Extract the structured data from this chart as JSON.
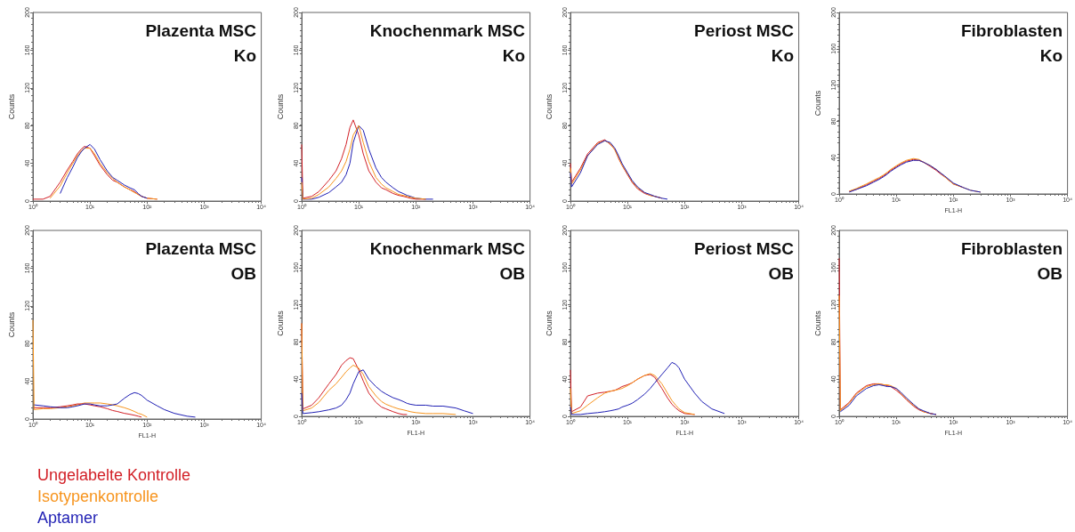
{
  "chart_data": [
    {
      "type": "line",
      "title": "Plazenta MSC\nKo",
      "ylabel": "Counts",
      "log": "x",
      "xlim": [
        1,
        10000
      ],
      "ylim": [
        0,
        200
      ],
      "xticks": [
        {
          "value": 1,
          "label": "10⁰"
        },
        {
          "value": 10,
          "label": "10¹"
        },
        {
          "value": 100,
          "label": "10²"
        },
        {
          "value": 1000,
          "label": "10³"
        },
        {
          "value": 10000,
          "label": "10⁴"
        }
      ],
      "yticks": [
        0,
        40,
        80,
        120,
        160,
        200
      ],
      "x": [
        1,
        1.05,
        1.5,
        2,
        3,
        4,
        5,
        6,
        7,
        8,
        10,
        12,
        15,
        20,
        25,
        30,
        40,
        50,
        60,
        70,
        80,
        100,
        150
      ],
      "series": [
        {
          "color": "#d21f26",
          "values": [
            2,
            2,
            2,
            5,
            20,
            33,
            42,
            50,
            55,
            58,
            56,
            48,
            38,
            28,
            22,
            20,
            15,
            12,
            10,
            7,
            5,
            3,
            2
          ]
        },
        {
          "color": "#f7941d",
          "values": [
            null,
            null,
            null,
            3,
            16,
            30,
            40,
            48,
            53,
            56,
            56,
            50,
            40,
            30,
            24,
            20,
            15,
            12,
            9,
            7,
            5,
            3,
            2
          ]
        },
        {
          "color": "#1f1fb4",
          "values": [
            null,
            null,
            null,
            null,
            8,
            25,
            36,
            46,
            52,
            56,
            60,
            55,
            44,
            32,
            25,
            22,
            17,
            14,
            12,
            8,
            5,
            3,
            null
          ]
        }
      ]
    },
    {
      "type": "line",
      "title": "Knochenmark MSC\nKo",
      "ylabel": "Counts",
      "log": "x",
      "xlim": [
        1,
        10000
      ],
      "ylim": [
        0,
        200
      ],
      "xticks": [
        {
          "value": 1,
          "label": "10⁰"
        },
        {
          "value": 10,
          "label": "10¹"
        },
        {
          "value": 100,
          "label": "10²"
        },
        {
          "value": 1000,
          "label": "10³"
        },
        {
          "value": 10000,
          "label": "10⁴"
        }
      ],
      "yticks": [
        0,
        40,
        80,
        120,
        160,
        200
      ],
      "x": [
        1,
        1.05,
        1.5,
        2,
        3,
        4,
        5,
        6,
        7,
        8,
        10,
        12,
        15,
        20,
        25,
        30,
        40,
        50,
        60,
        70,
        80,
        100,
        150,
        200
      ],
      "series": [
        {
          "color": "#d21f26",
          "values": [
            60,
            3,
            5,
            10,
            22,
            32,
            45,
            60,
            78,
            86,
            70,
            50,
            32,
            20,
            14,
            12,
            8,
            6,
            5,
            4,
            3,
            2,
            2,
            null
          ]
        },
        {
          "color": "#f7941d",
          "values": [
            20,
            2,
            3,
            7,
            15,
            24,
            32,
            42,
            55,
            70,
            80,
            62,
            42,
            25,
            18,
            14,
            10,
            7,
            6,
            5,
            4,
            3,
            2,
            null
          ]
        },
        {
          "color": "#1f1fb4",
          "values": [
            25,
            2,
            2,
            4,
            9,
            15,
            20,
            28,
            40,
            62,
            80,
            75,
            55,
            35,
            25,
            20,
            14,
            10,
            8,
            6,
            5,
            3,
            2,
            2
          ]
        }
      ]
    },
    {
      "type": "line",
      "title": "Periost MSC\nKo",
      "ylabel": "Counts",
      "log": "x",
      "xlim": [
        1,
        10000
      ],
      "ylim": [
        0,
        200
      ],
      "xticks": [
        {
          "value": 1,
          "label": "10⁰"
        },
        {
          "value": 10,
          "label": "10¹"
        },
        {
          "value": 100,
          "label": "10²"
        },
        {
          "value": 1000,
          "label": "10³"
        },
        {
          "value": 10000,
          "label": "10⁴"
        }
      ],
      "yticks": [
        0,
        40,
        80,
        120,
        160,
        200
      ],
      "x": [
        1,
        1.05,
        1.5,
        2,
        3,
        4,
        5,
        6,
        7,
        8,
        10,
        12,
        15,
        20,
        25,
        30,
        40,
        50
      ],
      "series": [
        {
          "color": "#d21f26",
          "values": [
            40,
            20,
            35,
            50,
            62,
            65,
            60,
            55,
            45,
            38,
            28,
            20,
            13,
            8,
            6,
            5,
            3,
            null
          ]
        },
        {
          "color": "#f7941d",
          "values": [
            35,
            18,
            33,
            48,
            61,
            64,
            61,
            54,
            46,
            38,
            29,
            21,
            14,
            9,
            6,
            5,
            3,
            null
          ]
        },
        {
          "color": "#1f1fb4",
          "values": [
            30,
            15,
            30,
            48,
            60,
            64,
            62,
            56,
            48,
            40,
            30,
            22,
            15,
            9,
            7,
            5,
            3,
            2
          ]
        }
      ]
    },
    {
      "type": "line",
      "title": "Fibroblasten\nKo",
      "xlabel": "FL1-H",
      "ylabel": "Counts",
      "log": "x",
      "xlim": [
        1,
        10000
      ],
      "ylim": [
        0,
        200
      ],
      "xticks": [
        {
          "value": 1,
          "label": "10⁰"
        },
        {
          "value": 10,
          "label": "10¹"
        },
        {
          "value": 100,
          "label": "10²"
        },
        {
          "value": 1000,
          "label": "10³"
        },
        {
          "value": 10000,
          "label": "10⁴"
        }
      ],
      "yticks": [
        0,
        40,
        80,
        120,
        160,
        200
      ],
      "x": [
        1.5,
        2,
        3,
        4,
        5,
        6,
        7,
        8,
        10,
        12,
        15,
        20,
        25,
        30,
        40,
        50,
        60,
        70,
        80,
        100,
        150,
        200,
        300
      ],
      "series": [
        {
          "color": "#d21f26",
          "values": [
            3,
            5,
            10,
            14,
            17,
            20,
            23,
            26,
            30,
            33,
            36,
            38,
            37,
            35,
            30,
            26,
            22,
            19,
            16,
            11,
            7,
            null,
            null
          ]
        },
        {
          "color": "#f7941d",
          "values": [
            3,
            6,
            11,
            15,
            18,
            21,
            24,
            27,
            31,
            34,
            37,
            39,
            38,
            35,
            31,
            27,
            23,
            19,
            16,
            11,
            7,
            4,
            2
          ]
        },
        {
          "color": "#1f1fb4",
          "values": [
            2,
            5,
            9,
            13,
            16,
            19,
            22,
            25,
            29,
            32,
            35,
            37,
            37,
            35,
            31,
            27,
            23,
            20,
            17,
            12,
            7,
            4,
            2
          ]
        }
      ]
    },
    {
      "type": "line",
      "title": "Plazenta MSC\nOB",
      "xlabel": "FL1-H",
      "ylabel": "Counts",
      "log": "x",
      "xlim": [
        1,
        10000
      ],
      "ylim": [
        0,
        200
      ],
      "legend": "bottom left",
      "xticks": [
        {
          "value": 1,
          "label": "10⁰"
        },
        {
          "value": 10,
          "label": "10¹"
        },
        {
          "value": 100,
          "label": "10²"
        },
        {
          "value": 1000,
          "label": "10³"
        },
        {
          "value": 10000,
          "label": "10⁴"
        }
      ],
      "yticks": [
        0,
        40,
        80,
        120,
        160,
        200
      ],
      "x": [
        1,
        1.05,
        1.5,
        2,
        3,
        4,
        5,
        6,
        7,
        8,
        10,
        12,
        15,
        20,
        25,
        30,
        40,
        50,
        60,
        70,
        80,
        100,
        150,
        200,
        300,
        500,
        700
      ],
      "series": [
        {
          "name": "Ungelabelte Kontrolle",
          "color": "#d21f26",
          "values": [
            null,
            12,
            12,
            12,
            13,
            14,
            15,
            16,
            16,
            16,
            15,
            14,
            13,
            11,
            9,
            8,
            6,
            5,
            4,
            3,
            2,
            null,
            null,
            null,
            null,
            null,
            null
          ]
        },
        {
          "name": "Isotypenkontrolle",
          "color": "#f7941d",
          "values": [
            105,
            10,
            11,
            11,
            12,
            13,
            14,
            15,
            16,
            17,
            17,
            17,
            17,
            16,
            15,
            14,
            12,
            10,
            8,
            6,
            5,
            2,
            null,
            null,
            null,
            null,
            null
          ]
        },
        {
          "name": "Aptamer",
          "color": "#1f1fb4",
          "values": [
            null,
            15,
            14,
            13,
            12,
            12,
            13,
            14,
            15,
            16,
            16,
            15,
            14,
            14,
            15,
            16,
            22,
            26,
            28,
            27,
            25,
            20,
            14,
            10,
            6,
            3,
            2
          ]
        }
      ]
    },
    {
      "type": "line",
      "title": "Knochenmark MSC\nOB",
      "xlabel": "FL1-H",
      "ylabel": "Counts",
      "log": "x",
      "xlim": [
        1,
        10000
      ],
      "ylim": [
        0,
        200
      ],
      "xticks": [
        {
          "value": 1,
          "label": "10⁰"
        },
        {
          "value": 10,
          "label": "10¹"
        },
        {
          "value": 100,
          "label": "10²"
        },
        {
          "value": 1000,
          "label": "10³"
        },
        {
          "value": 10000,
          "label": "10⁴"
        }
      ],
      "yticks": [
        0,
        40,
        80,
        120,
        160,
        200
      ],
      "x": [
        1,
        1.05,
        1.5,
        2,
        3,
        4,
        5,
        6,
        7,
        8,
        10,
        12,
        15,
        20,
        25,
        30,
        40,
        50,
        60,
        70,
        80,
        100,
        150,
        200,
        300,
        500,
        700,
        1000
      ],
      "series": [
        {
          "color": "#d21f26",
          "values": [
            100,
            8,
            12,
            20,
            35,
            45,
            55,
            60,
            63,
            62,
            50,
            38,
            25,
            15,
            10,
            8,
            5,
            3,
            2,
            2,
            null,
            null,
            null,
            null,
            null,
            null,
            null,
            null
          ]
        },
        {
          "color": "#f7941d",
          "values": [
            100,
            6,
            9,
            15,
            28,
            35,
            42,
            48,
            52,
            55,
            52,
            45,
            32,
            22,
            16,
            13,
            10,
            8,
            7,
            6,
            5,
            4,
            3,
            3,
            3,
            2,
            null,
            null
          ]
        },
        {
          "color": "#1f1fb4",
          "values": [
            25,
            3,
            4,
            5,
            7,
            9,
            12,
            18,
            25,
            35,
            48,
            50,
            40,
            32,
            27,
            24,
            20,
            18,
            16,
            14,
            13,
            12,
            12,
            11,
            11,
            9,
            6,
            3
          ]
        }
      ]
    },
    {
      "type": "line",
      "title": "Periost MSC\nOB",
      "xlabel": "FL1-H",
      "ylabel": "Counts",
      "log": "x",
      "xlim": [
        1,
        10000
      ],
      "ylim": [
        0,
        200
      ],
      "xticks": [
        {
          "value": 1,
          "label": "10⁰"
        },
        {
          "value": 10,
          "label": "10¹"
        },
        {
          "value": 100,
          "label": "10²"
        },
        {
          "value": 1000,
          "label": "10³"
        },
        {
          "value": 10000,
          "label": "10⁴"
        }
      ],
      "yticks": [
        0,
        40,
        80,
        120,
        160,
        200
      ],
      "x": [
        1,
        1.05,
        1.5,
        2,
        3,
        4,
        5,
        6,
        7,
        8,
        10,
        12,
        15,
        20,
        25,
        30,
        40,
        50,
        60,
        70,
        80,
        100,
        150,
        200,
        300,
        500
      ],
      "series": [
        {
          "color": "#d21f26",
          "values": [
            50,
            5,
            10,
            22,
            25,
            26,
            27,
            28,
            30,
            32,
            34,
            36,
            40,
            44,
            45,
            42,
            30,
            20,
            13,
            9,
            6,
            3,
            2,
            null,
            null,
            null
          ]
        },
        {
          "color": "#f7941d",
          "values": [
            30,
            3,
            6,
            12,
            20,
            25,
            27,
            28,
            29,
            30,
            33,
            36,
            40,
            44,
            46,
            44,
            35,
            25,
            17,
            12,
            8,
            4,
            2,
            null,
            null,
            null
          ]
        },
        {
          "color": "#1f1fb4",
          "values": [
            10,
            2,
            2,
            3,
            4,
            5,
            6,
            7,
            8,
            10,
            12,
            14,
            18,
            24,
            30,
            36,
            45,
            52,
            58,
            56,
            52,
            40,
            25,
            16,
            8,
            3
          ]
        }
      ]
    },
    {
      "type": "line",
      "title": "Fibroblasten\nOB",
      "xlabel": "FL1-H",
      "ylabel": "Counts",
      "log": "x",
      "xlim": [
        1,
        10000
      ],
      "ylim": [
        0,
        200
      ],
      "xticks": [
        {
          "value": 1,
          "label": "10⁰"
        },
        {
          "value": 10,
          "label": "10¹"
        },
        {
          "value": 100,
          "label": "10²"
        },
        {
          "value": 1000,
          "label": "10³"
        },
        {
          "value": 10000,
          "label": "10⁴"
        }
      ],
      "yticks": [
        0,
        40,
        80,
        120,
        160,
        200
      ],
      "x": [
        1,
        1.05,
        1.5,
        2,
        3,
        4,
        5,
        6,
        7,
        8,
        10,
        12,
        15,
        20,
        25,
        30,
        40,
        50
      ],
      "series": [
        {
          "color": "#d21f26",
          "values": [
            170,
            7,
            15,
            25,
            33,
            35,
            35,
            34,
            33,
            32,
            28,
            24,
            18,
            11,
            7,
            5,
            3,
            2
          ]
        },
        {
          "color": "#f7941d",
          "values": [
            130,
            6,
            14,
            24,
            32,
            34,
            35,
            34,
            34,
            33,
            30,
            25,
            19,
            12,
            8,
            5,
            3,
            2
          ]
        },
        {
          "color": "#1f1fb4",
          "values": [
            null,
            5,
            12,
            22,
            30,
            33,
            34,
            33,
            32,
            32,
            30,
            26,
            20,
            13,
            8,
            6,
            3,
            2
          ]
        }
      ]
    }
  ]
}
